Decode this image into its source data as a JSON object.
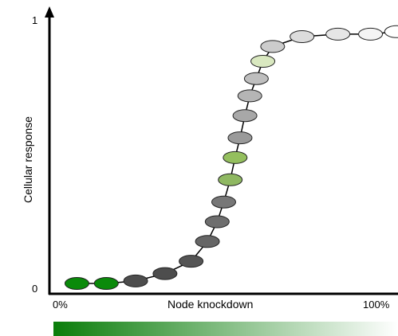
{
  "chart_data": {
    "type": "line",
    "title": "",
    "xlabel": "Node knockdown",
    "ylabel": "Cellular response",
    "x_tick_labels": [
      "0%",
      "100%"
    ],
    "y_tick_labels": [
      "0",
      "1"
    ],
    "xlim": [
      0,
      100
    ],
    "ylim": [
      0,
      1
    ],
    "grid": false,
    "legend": "none",
    "series": [
      {
        "marker": "ellipse",
        "points": [
          {
            "x": 5,
            "y": 0.0,
            "color": "#0a8a0a"
          },
          {
            "x": 14,
            "y": 0.0,
            "color": "#0a8a0a"
          },
          {
            "x": 23,
            "y": 0.01,
            "color": "#4d4d4d"
          },
          {
            "x": 32,
            "y": 0.04,
            "color": "#4d4d4d"
          },
          {
            "x": 40,
            "y": 0.09,
            "color": "#555555"
          },
          {
            "x": 45,
            "y": 0.17,
            "color": "#666666"
          },
          {
            "x": 48,
            "y": 0.25,
            "color": "#6e6e6e"
          },
          {
            "x": 50,
            "y": 0.33,
            "color": "#777777"
          },
          {
            "x": 52,
            "y": 0.42,
            "color": "#8fb862"
          },
          {
            "x": 53.5,
            "y": 0.51,
            "color": "#94bf5e"
          },
          {
            "x": 55,
            "y": 0.59,
            "color": "#9a9a9a"
          },
          {
            "x": 56.5,
            "y": 0.68,
            "color": "#a8a8a8"
          },
          {
            "x": 58,
            "y": 0.76,
            "color": "#b5b5b5"
          },
          {
            "x": 60,
            "y": 0.83,
            "color": "#bebebe"
          },
          {
            "x": 62,
            "y": 0.9,
            "color": "#d9e8c0"
          },
          {
            "x": 65,
            "y": 0.96,
            "color": "#cccccc"
          },
          {
            "x": 74,
            "y": 1.0,
            "color": "#dcdcdc"
          },
          {
            "x": 85,
            "y": 1.01,
            "color": "#e6e6e6"
          },
          {
            "x": 95,
            "y": 1.01,
            "color": "#f4f4f4"
          },
          {
            "x": 103,
            "y": 1.02,
            "color": "#ffffff"
          }
        ]
      }
    ],
    "colorbar": {
      "from": "#0a7d0a",
      "to": "#ffffff"
    }
  }
}
